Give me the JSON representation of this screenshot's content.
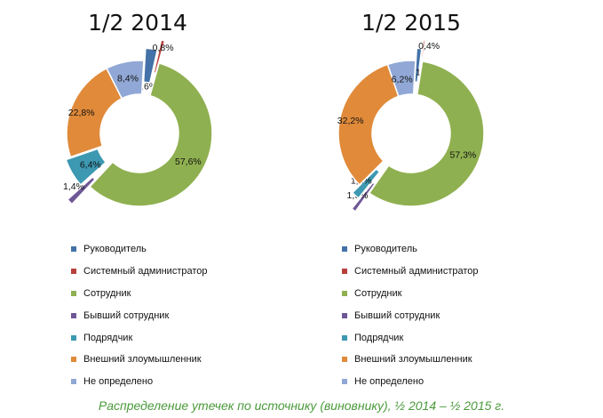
{
  "chart_data": [
    {
      "type": "pie",
      "title": "1/2 2014",
      "categories": [
        "Руководитель",
        "Системный администратор",
        "Сотрудник",
        "Бывший сотрудник",
        "Подрядчик",
        "Внешний злоумышленник",
        "Не определено"
      ],
      "values": [
        2.6,
        0.8,
        57.6,
        1.4,
        6.4,
        22.8,
        8.4
      ],
      "labels": [
        "2,6%",
        "0,8%",
        "57,6%",
        "1,4%",
        "6,4%",
        "22,8%",
        "8,4%"
      ],
      "colors": [
        "#4472a8",
        "#b8403c",
        "#8fb050",
        "#6e5796",
        "#3d98b1",
        "#e08a3a",
        "#91a8d6"
      ],
      "legend_position": "bottom"
    },
    {
      "type": "pie",
      "title": "1/2 2015",
      "categories": [
        "Руководитель",
        "Системный администратор",
        "Сотрудник",
        "Бывший сотрудник",
        "Подрядчик",
        "Внешний злоумышленник",
        "Не определено"
      ],
      "values": [
        1.1,
        0.4,
        57.3,
        1.0,
        1.8,
        32.2,
        6.2
      ],
      "labels": [
        "1,1%",
        "0,4%",
        "57,3%",
        "1,0%",
        "1,8%",
        "32,2%",
        "6,2%"
      ],
      "colors": [
        "#4472a8",
        "#b8403c",
        "#8fb050",
        "#6e5796",
        "#3d98b1",
        "#e08a3a",
        "#91a8d6"
      ],
      "legend_position": "bottom"
    }
  ],
  "caption": "Распределение утечек по источнику (виновнику), ½ 2014 – ½ 2015 г."
}
